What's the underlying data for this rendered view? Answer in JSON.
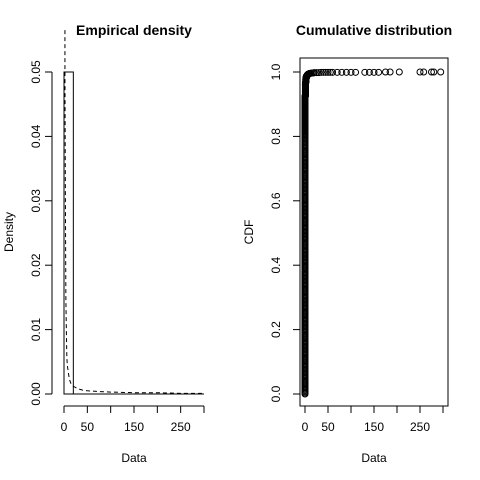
{
  "chart_data": [
    {
      "type": "histogram-density",
      "title": "Empirical density",
      "xlabel": "Data",
      "ylabel": "Density",
      "xlim": [
        0,
        300
      ],
      "ylim": [
        0,
        0.05
      ],
      "xticks": [
        "0",
        "50",
        "150",
        "250"
      ],
      "xtick_values": [
        0,
        50,
        150,
        250
      ],
      "yticks": [
        "0.00",
        "0.01",
        "0.02",
        "0.03",
        "0.04",
        "0.05"
      ],
      "ytick_values": [
        0,
        0.01,
        0.02,
        0.03,
        0.04,
        0.05
      ],
      "bars": [
        {
          "x0": 0,
          "x1": 20,
          "height": 0.05
        }
      ],
      "density_curve": {
        "x": [
          2,
          3,
          4,
          5,
          6,
          7,
          8,
          10,
          12,
          15,
          20,
          30,
          40,
          50,
          70,
          100,
          150,
          200,
          250,
          300
        ],
        "y": [
          0.05,
          0.03,
          0.015,
          0.01,
          0.006,
          0.0045,
          0.004,
          0.003,
          0.0022,
          0.0016,
          0.0012,
          0.0008,
          0.0006,
          0.0005,
          0.0004,
          0.0003,
          0.0002,
          0.0002,
          0.0001,
          0.0001
        ]
      }
    },
    {
      "type": "scatter",
      "title": "Cumulative distribution",
      "xlabel": "Data",
      "ylabel": "CDF",
      "xlim": [
        0,
        300
      ],
      "ylim": [
        0,
        1
      ],
      "xticks": [
        "0",
        "50",
        "150",
        "250"
      ],
      "xtick_values": [
        0,
        50,
        150,
        250
      ],
      "yticks": [
        "0.0",
        "0.2",
        "0.4",
        "0.6",
        "0.8",
        "1.0"
      ],
      "ytick_values": [
        0,
        0.2,
        0.4,
        0.6,
        0.8,
        1.0
      ],
      "points": {
        "x": [
          0,
          0,
          0,
          0,
          0,
          0,
          0,
          0,
          0,
          0,
          0,
          0,
          0,
          0,
          0,
          0,
          0,
          0,
          0,
          0,
          0,
          1,
          1,
          1,
          1,
          1,
          2,
          2,
          2,
          3,
          3,
          4,
          5,
          6,
          8,
          10,
          12,
          15,
          18,
          20,
          25,
          30,
          35,
          40,
          45,
          50,
          55,
          60,
          70,
          80,
          90,
          100,
          110,
          130,
          140,
          150,
          160,
          175,
          185,
          205,
          250,
          258,
          275,
          280,
          295
        ],
        "y": [
          0.0,
          0.05,
          0.1,
          0.15,
          0.2,
          0.25,
          0.3,
          0.35,
          0.4,
          0.45,
          0.5,
          0.55,
          0.6,
          0.65,
          0.7,
          0.75,
          0.8,
          0.84,
          0.87,
          0.9,
          0.92,
          0.93,
          0.94,
          0.95,
          0.96,
          0.965,
          0.97,
          0.975,
          0.98,
          0.983,
          0.986,
          0.988,
          0.99,
          0.992,
          0.994,
          0.995,
          0.996,
          0.997,
          0.997,
          0.998,
          0.998,
          0.998,
          0.999,
          0.999,
          0.999,
          0.999,
          0.999,
          0.999,
          0.999,
          0.999,
          0.999,
          0.999,
          0.999,
          0.999,
          0.999,
          0.999,
          0.999,
          1.0,
          1.0,
          1.0,
          1.0,
          1.0,
          1.0,
          1.0,
          1.0
        ]
      }
    }
  ]
}
